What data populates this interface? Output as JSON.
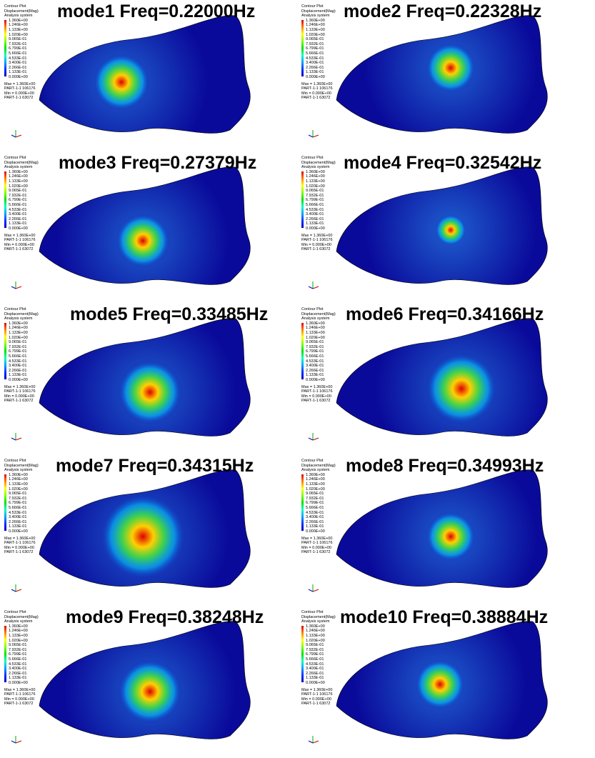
{
  "panels": [
    {
      "title": "mode1 Freq=0.22000Hz"
    },
    {
      "title": "mode2 Freq=0.22328Hz"
    },
    {
      "title": "mode3 Freq=0.27379Hz"
    },
    {
      "title": "mode4 Freq=0.32542Hz"
    },
    {
      "title": "mode5 Freq=0.33485Hz"
    },
    {
      "title": "mode6 Freq=0.34166Hz"
    },
    {
      "title": "mode7 Freq=0.34315Hz"
    },
    {
      "title": "mode8 Freq=0.34993Hz"
    },
    {
      "title": "mode9 Freq=0.38248Hz"
    },
    {
      "title": "mode10 Freq=0.38884Hz"
    }
  ],
  "legend": {
    "header": [
      "Contour Plot",
      "Displacement(Mag)",
      "Analysis system"
    ],
    "levels": [
      "1.360E+00",
      "1.246E+00",
      "1.133E+00",
      "1.020E+00",
      "9.065E-01",
      "7.932E-01",
      "6.799E-01",
      "5.666E-01",
      "4.533E-01",
      "3.400E-01",
      "2.266E-01",
      "1.133E-01",
      "0.000E+00"
    ],
    "footer": [
      "Max = 1.360E+00",
      "PART-1-1 106176",
      "Min = 0.000E+00",
      "PART-1-1 63072"
    ]
  }
}
